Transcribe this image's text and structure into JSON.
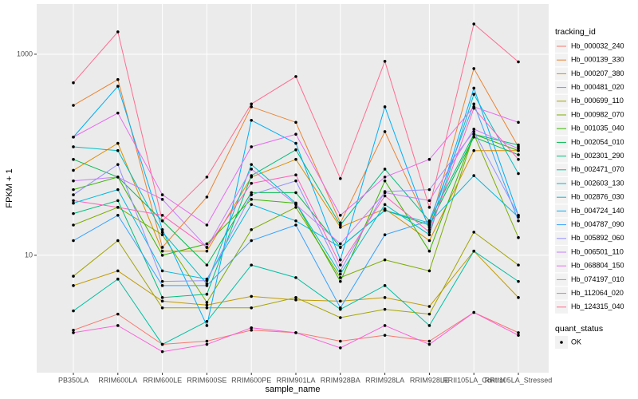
{
  "chart_data": {
    "type": "line",
    "yscale": "log",
    "grid": true,
    "x_label": "sample_name",
    "y_label": "FPKM + 1",
    "legend_title": "tracking_id",
    "legend_position": "right",
    "point_legend_title": "quant_status",
    "point_legend_label": "OK",
    "point_color": "#000000",
    "categories": [
      "PB350LA",
      "RRIM600LA",
      "RRIM600LE",
      "RRIM600SE",
      "RRIM600PE",
      "RRIM901LA",
      "RRIM928BA",
      "RRIM928LA",
      "RRIM928LE",
      "RRII105LA_Control",
      "RRII105LA_Stressed"
    ],
    "ylim": [
      0.68,
      3160
    ],
    "yticks": [
      10,
      1000
    ],
    "series": [
      {
        "name": "Hb_000032_240",
        "color": "#F8766D",
        "values": [
          1.8,
          2.6,
          1.3,
          1.4,
          1.8,
          1.7,
          1.4,
          1.6,
          1.4,
          2.7,
          1.7
        ]
      },
      {
        "name": "Hb_000139_330",
        "color": "#EA8331",
        "values": [
          310,
          560,
          12,
          38,
          300,
          210,
          21,
          170,
          19,
          720,
          120
        ]
      },
      {
        "name": "Hb_000207_380",
        "color": "#D89000",
        "values": [
          70,
          130,
          11,
          11,
          60,
          90,
          19,
          29,
          14,
          110,
          110
        ]
      },
      {
        "name": "Hb_000481_020",
        "color": "#C09B00",
        "values": [
          5,
          7,
          3.5,
          3.2,
          3.9,
          3.6,
          3.5,
          3.8,
          3.1,
          11,
          3.8
        ]
      },
      {
        "name": "Hb_000699_110",
        "color": "#A3A500",
        "values": [
          6.2,
          14,
          3,
          3,
          3,
          3.8,
          2.4,
          2.9,
          2.6,
          17,
          8
        ]
      },
      {
        "name": "Hb_000982_070",
        "color": "#7CAE00",
        "values": [
          20,
          30,
          16,
          3.4,
          18,
          30,
          6,
          9,
          7,
          160,
          15
        ]
      },
      {
        "name": "Hb_001035_040",
        "color": "#39B600",
        "values": [
          45,
          60,
          10,
          13,
          36,
          33,
          5.5,
          55,
          11,
          160,
          110
        ]
      },
      {
        "name": "Hb_002054_010",
        "color": "#00BB4E",
        "values": [
          90,
          60,
          22,
          8,
          42,
          42,
          12,
          28,
          20,
          150,
          100
        ]
      },
      {
        "name": "Hb_002301_290",
        "color": "#00BF7D",
        "values": [
          26,
          35,
          3.8,
          4.1,
          62,
          112,
          20,
          72,
          22,
          160,
          125
        ]
      },
      {
        "name": "Hb_002471_070",
        "color": "#00C1A3",
        "values": [
          2.8,
          5.8,
          1.3,
          2.2,
          8,
          6,
          2.9,
          5,
          2,
          11,
          5.5
        ]
      },
      {
        "name": "Hb_002603_130",
        "color": "#00BFC4",
        "values": [
          120,
          110,
          17,
          5.2,
          80,
          33,
          6.5,
          32,
          16,
          400,
          65
        ]
      },
      {
        "name": "Hb_002876_030",
        "color": "#00BAE0",
        "values": [
          33,
          45,
          7,
          5.8,
          32,
          22,
          12,
          28,
          21,
          62,
          24
        ]
      },
      {
        "name": "Hb_004724_140",
        "color": "#00B0F6",
        "values": [
          150,
          480,
          18,
          2,
          220,
          130,
          9,
          300,
          18,
          460,
          25
        ]
      },
      {
        "name": "Hb_004787_090",
        "color": "#35A2FF",
        "values": [
          14,
          25,
          5,
          5,
          14,
          20,
          3,
          16,
          22,
          320,
          22
        ]
      },
      {
        "name": "Hb_005892_060",
        "color": "#9590FF",
        "values": [
          40,
          80,
          5.5,
          5.6,
          40,
          55,
          7,
          43,
          45,
          170,
          25
        ]
      },
      {
        "name": "Hb_006501_110",
        "color": "#C77CFF",
        "values": [
          55,
          60,
          36,
          12,
          72,
          32,
          13,
          42,
          35,
          180,
          115
        ]
      },
      {
        "name": "Hb_068804_150",
        "color": "#E76BF3",
        "values": [
          150,
          260,
          40,
          20,
          120,
          160,
          25,
          60,
          90,
          300,
          210
        ]
      },
      {
        "name": "Hb_074197_010",
        "color": "#FA62DB",
        "values": [
          1.7,
          2,
          1.1,
          1.3,
          1.9,
          1.7,
          1.2,
          2,
          1.3,
          2.7,
          1.6
        ]
      },
      {
        "name": "Hb_112064_020",
        "color": "#FF62BC",
        "values": [
          35,
          30,
          25,
          12,
          52,
          63,
          8,
          39,
          17,
          290,
          90
        ]
      },
      {
        "name": "Hb_124315_040",
        "color": "#FF6C91",
        "values": [
          520,
          1670,
          22,
          60,
          320,
          600,
          58,
          850,
          30,
          2000,
          840
        ]
      }
    ]
  }
}
